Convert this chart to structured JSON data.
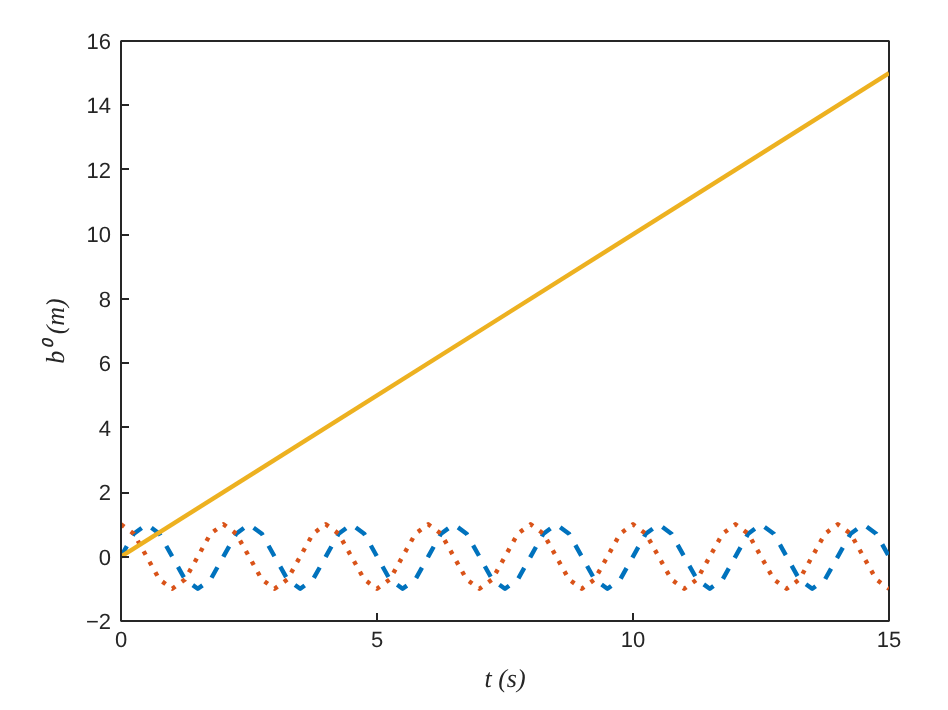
{
  "chart_data": {
    "type": "line",
    "xlabel": "t (s)",
    "ylabel": "b⁰ (m)",
    "x": [
      0,
      0.25,
      0.5,
      0.75,
      1,
      1.25,
      1.5,
      1.75,
      2,
      2.25,
      2.5,
      2.75,
      3,
      3.25,
      3.5,
      3.75,
      4,
      4.25,
      4.5,
      4.75,
      5,
      5.25,
      5.5,
      5.75,
      6,
      6.25,
      6.5,
      6.75,
      7,
      7.25,
      7.5,
      7.75,
      8,
      8.25,
      8.5,
      8.75,
      9,
      9.25,
      9.5,
      9.75,
      10,
      10.25,
      10.5,
      10.75,
      11,
      11.25,
      11.5,
      11.75,
      12,
      12.25,
      12.5,
      12.75,
      13,
      13.25,
      13.5,
      13.75,
      14,
      14.25,
      14.5,
      14.75,
      15
    ],
    "series": [
      {
        "color": "#0072bd",
        "line_style": "dashed",
        "values": [
          0,
          0.71,
          1,
          0.71,
          0,
          -0.71,
          -1,
          -0.71,
          0,
          0.71,
          1,
          0.71,
          0,
          -0.71,
          -1,
          -0.71,
          0,
          0.71,
          1,
          0.71,
          0,
          -0.71,
          -1,
          -0.71,
          0,
          0.71,
          1,
          0.71,
          0,
          -0.71,
          -1,
          -0.71,
          0,
          0.71,
          1,
          0.71,
          0,
          -0.71,
          -1,
          -0.71,
          0,
          0.71,
          1,
          0.71,
          0,
          -0.71,
          -1,
          -0.71,
          0,
          0.71,
          1,
          0.71,
          0,
          -0.71,
          -1,
          -0.71,
          0,
          0.71,
          1,
          0.71,
          0
        ]
      },
      {
        "color": "#d95319",
        "line_style": "dotted",
        "values": [
          1,
          0.71,
          0,
          -0.71,
          -1,
          -0.71,
          0,
          0.71,
          1,
          0.71,
          0,
          -0.71,
          -1,
          -0.71,
          0,
          0.71,
          1,
          0.71,
          0,
          -0.71,
          -1,
          -0.71,
          0,
          0.71,
          1,
          0.71,
          0,
          -0.71,
          -1,
          -0.71,
          0,
          0.71,
          1,
          0.71,
          0,
          -0.71,
          -1,
          -0.71,
          0,
          0.71,
          1,
          0.71,
          0,
          -0.71,
          -1,
          -0.71,
          0,
          0.71,
          1,
          0.71,
          0,
          -0.71,
          -1,
          -0.71,
          0,
          0.71,
          1,
          0.71,
          0,
          -0.71,
          -1
        ]
      },
      {
        "color": "#edb120",
        "line_style": "solid",
        "x": [
          0,
          15
        ],
        "values": [
          0,
          15
        ]
      }
    ],
    "xlim": [
      0,
      15
    ],
    "ylim": [
      -2,
      16
    ],
    "xticks": [
      0,
      5,
      10,
      15
    ],
    "yticks": [
      -2,
      0,
      2,
      4,
      6,
      8,
      10,
      12,
      14,
      16
    ]
  }
}
